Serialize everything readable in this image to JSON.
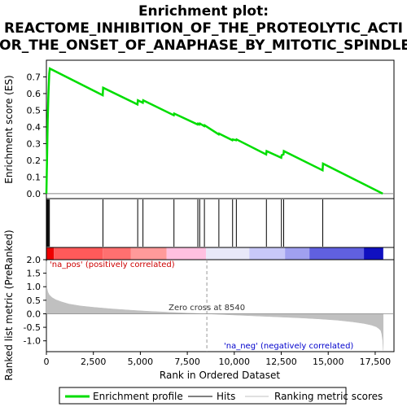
{
  "chart_data": {
    "type": "line",
    "title_lines": [
      "Enrichment plot:",
      "REACTOME_INHIBITION_OF_THE_PROTEOLYTIC_ACTI",
      "FOR_THE_ONSET_OF_ANAPHASE_BY_MITOTIC_SPINDLE_"
    ],
    "xlabel": "Rank in Ordered Dataset",
    "xlim": [
      0,
      18500
    ],
    "x_ticks": [
      0,
      2500,
      5000,
      7500,
      10000,
      12500,
      15000,
      17500
    ],
    "x_tick_labels": [
      "0",
      "2,500",
      "5,000",
      "7,500",
      "10,000",
      "12,500",
      "15,000",
      "17,500"
    ],
    "es_panel": {
      "ylabel": "Enrichment score (ES)",
      "ylim": [
        -0.03,
        0.8
      ],
      "y_ticks": [
        0.0,
        0.1,
        0.2,
        0.3,
        0.4,
        0.5,
        0.6,
        0.7
      ],
      "y_tick_labels": [
        "0.0",
        "0.1",
        "0.2",
        "0.3",
        "0.4",
        "0.5",
        "0.6",
        "0.7"
      ],
      "series": [
        {
          "name": "Enrichment profile",
          "color": "#00dd00",
          "x": [
            0,
            40,
            70,
            110,
            150,
            180,
            3000,
            3020,
            4850,
            4870,
            5130,
            5150,
            6780,
            6800,
            8050,
            8070,
            8150,
            8170,
            8400,
            8420,
            9170,
            9190,
            9900,
            9920,
            10100,
            10120,
            11700,
            11720,
            12500,
            12520,
            12620,
            12640,
            14700,
            14720,
            17900
          ],
          "y": [
            0.0,
            0.24,
            0.44,
            0.6,
            0.72,
            0.75,
            0.59,
            0.635,
            0.535,
            0.56,
            0.545,
            0.56,
            0.47,
            0.48,
            0.415,
            0.42,
            0.415,
            0.42,
            0.405,
            0.41,
            0.355,
            0.36,
            0.32,
            0.325,
            0.32,
            0.325,
            0.235,
            0.255,
            0.215,
            0.23,
            0.235,
            0.255,
            0.14,
            0.18,
            0.0
          ]
        }
      ]
    },
    "hits": {
      "name": "Hits",
      "x": [
        40,
        80,
        120,
        160,
        3010,
        4860,
        5140,
        6790,
        8060,
        8160,
        8410,
        9180,
        9910,
        10110,
        11710,
        12510,
        12630,
        14710
      ]
    },
    "ranked_panel": {
      "ylabel": "Ranked list metric (PreRanked)",
      "ylim": [
        -1.4,
        2.0
      ],
      "y_ticks": [
        -1.0,
        -0.5,
        0.0,
        0.5,
        1.0,
        1.5,
        2.0
      ],
      "y_tick_labels": [
        "-1.0",
        "-0.5",
        "0.0",
        "0.5",
        "1.0",
        "1.5",
        "2.0"
      ],
      "series": [
        {
          "name": "Ranking metric scores",
          "color": "#c0c0c0",
          "x": [
            0,
            30,
            80,
            150,
            300,
            500,
            800,
            1200,
            1800,
            2500,
            3500,
            4500,
            5500,
            6500,
            7500,
            8540,
            9500,
            10500,
            11500,
            12500,
            13500,
            14500,
            15500,
            16300,
            16900,
            17300,
            17550,
            17700,
            17800,
            17850,
            17900,
            17930
          ],
          "y": [
            1.95,
            0.95,
            0.8,
            0.7,
            0.6,
            0.52,
            0.44,
            0.36,
            0.29,
            0.24,
            0.18,
            0.13,
            0.09,
            0.055,
            0.025,
            0.0,
            -0.03,
            -0.06,
            -0.09,
            -0.12,
            -0.15,
            -0.19,
            -0.24,
            -0.3,
            -0.36,
            -0.42,
            -0.48,
            -0.55,
            -0.62,
            -0.75,
            -1.0,
            -1.35
          ]
        }
      ],
      "zero_cross_x": 8540,
      "zero_cross_label": "Zero cross at 8540",
      "pos_label": "'na_pos' (positively correlated)",
      "neg_label": "'na_neg' (negatively correlated)",
      "pos_color": "#cc0000",
      "neg_color": "#0000cc"
    },
    "heatbar": {
      "segments": [
        {
          "start": 0,
          "end": 400,
          "color": "#ee0000"
        },
        {
          "start": 400,
          "end": 3000,
          "color": "#ff5a5a"
        },
        {
          "start": 3000,
          "end": 4500,
          "color": "#ff7070"
        },
        {
          "start": 4500,
          "end": 6400,
          "color": "#ff9a9a"
        },
        {
          "start": 6400,
          "end": 8500,
          "color": "#ffc0e0"
        },
        {
          "start": 8500,
          "end": 10800,
          "color": "#e8e8f8"
        },
        {
          "start": 10800,
          "end": 12700,
          "color": "#c8c8f8"
        },
        {
          "start": 12700,
          "end": 14000,
          "color": "#a0a0f0"
        },
        {
          "start": 14000,
          "end": 16900,
          "color": "#6060e0"
        },
        {
          "start": 16900,
          "end": 17930,
          "color": "#1010c0"
        }
      ]
    },
    "legend": [
      {
        "label": "Enrichment profile",
        "color": "#00dd00"
      },
      {
        "label": "Hits",
        "color": "#000000"
      },
      {
        "label": "Ranking metric scores",
        "color": "#c0c0c0"
      }
    ],
    "legend_placement": "bottom",
    "grid": false
  }
}
